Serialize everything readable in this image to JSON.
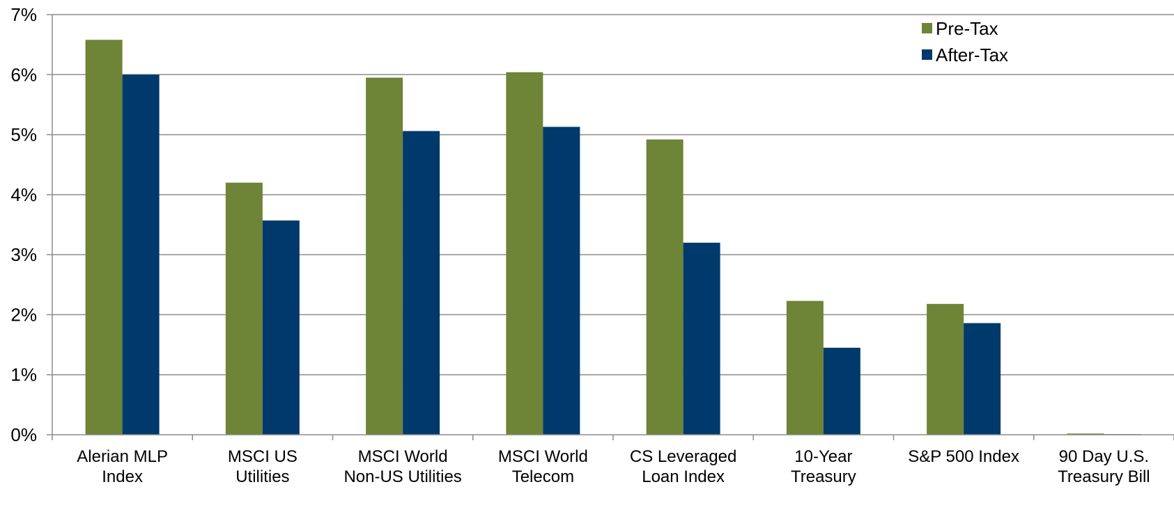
{
  "chart_data": {
    "type": "bar",
    "categories": [
      [
        "Alerian MLP",
        "Index"
      ],
      [
        "MSCI  US",
        "Utilities"
      ],
      [
        "MSCI  World",
        "Non-US Utilities"
      ],
      [
        "MSCI  World",
        "Telecom"
      ],
      [
        "CS Leveraged",
        "Loan Index"
      ],
      [
        "10-Year",
        "Treasury"
      ],
      [
        "S&P 500 Index"
      ],
      [
        "90 Day U.S.",
        "Treasury Bill"
      ]
    ],
    "series": [
      {
        "name": "Pre-Tax",
        "color": "#6e8436",
        "values": [
          6.58,
          4.2,
          5.95,
          6.04,
          4.92,
          2.23,
          2.18,
          0.02
        ]
      },
      {
        "name": "After-Tax",
        "color": "#003a6c",
        "values": [
          6.0,
          3.57,
          5.06,
          5.13,
          3.2,
          1.45,
          1.86,
          0.01
        ]
      }
    ],
    "yticks": [
      "0%",
      "1%",
      "2%",
      "3%",
      "4%",
      "5%",
      "6%",
      "7%"
    ],
    "ylim": [
      0,
      7
    ],
    "grid": true,
    "legend_position": "top-right"
  }
}
